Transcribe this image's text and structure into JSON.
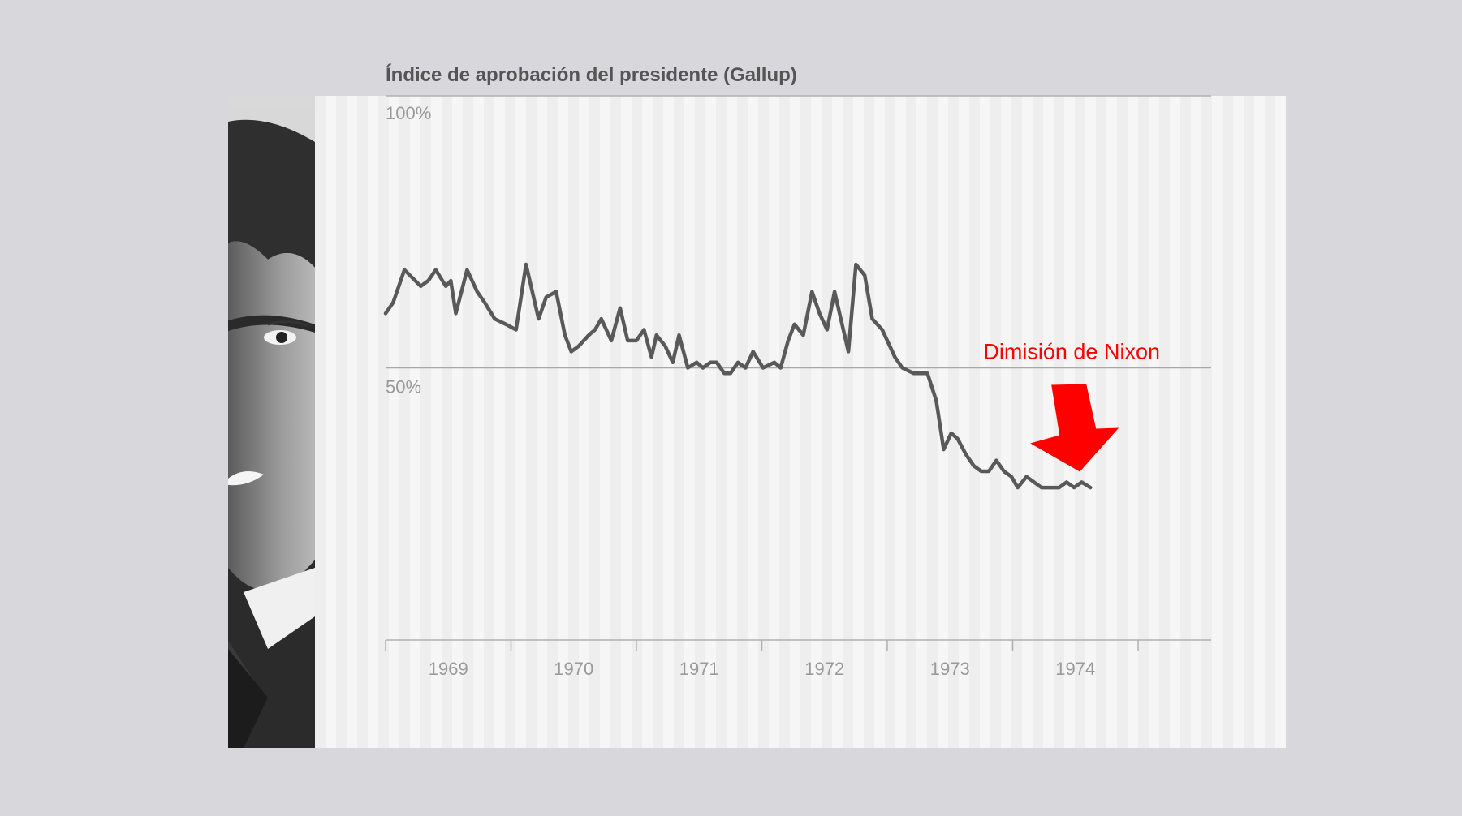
{
  "chart_data": {
    "type": "line",
    "title": "Índice de aprobación del presidente (Gallup)",
    "y_ticks": [
      "100%",
      "50%"
    ],
    "y_tick_values": [
      100,
      50
    ],
    "ylim": [
      0,
      100
    ],
    "x_ticks": [
      "1969",
      "1970",
      "1971",
      "1972",
      "1973",
      "1974"
    ],
    "xlim": [
      1969,
      1975.6
    ],
    "annotation": {
      "label": "Dimisión de Nixon",
      "x": 1974.6,
      "color": "#ff0000"
    },
    "line_color": "#595959",
    "series": [
      {
        "x": [
          1969.0,
          1969.06,
          1969.15,
          1969.28,
          1969.34,
          1969.4,
          1969.48,
          1969.52,
          1969.56,
          1969.65,
          1969.73,
          1969.79,
          1969.87,
          1969.96,
          1970.04,
          1970.12,
          1970.22,
          1970.28,
          1970.36,
          1970.43,
          1970.48,
          1970.54,
          1970.62,
          1970.67,
          1970.72,
          1970.8,
          1970.87,
          1970.93,
          1971.0,
          1971.06,
          1971.12,
          1971.16,
          1971.23,
          1971.29,
          1971.34,
          1971.41,
          1971.48,
          1971.53,
          1971.59,
          1971.64,
          1971.7,
          1971.75,
          1971.81,
          1971.87,
          1971.93,
          1972.01,
          1972.1,
          1972.15,
          1972.21,
          1972.26,
          1972.33,
          1972.4,
          1972.46,
          1972.52,
          1972.58,
          1972.63,
          1972.69,
          1972.75,
          1972.82,
          1972.88,
          1972.96,
          1973.06,
          1973.12,
          1973.21,
          1973.27,
          1973.32,
          1973.39,
          1973.45,
          1973.51,
          1973.56,
          1973.63,
          1973.69,
          1973.75,
          1973.81,
          1973.87,
          1973.93,
          1973.99,
          1974.04,
          1974.11,
          1974.17,
          1974.23,
          1974.3,
          1974.37,
          1974.43,
          1974.49,
          1974.55,
          1974.62
        ],
        "y": [
          60,
          62,
          68,
          65,
          66,
          68,
          65,
          66,
          60,
          68,
          64,
          62,
          59,
          58,
          57,
          69,
          59,
          63,
          64,
          56,
          53,
          54,
          56,
          57,
          59,
          55,
          61,
          55,
          55,
          57,
          52,
          56,
          54,
          51,
          56,
          50,
          51,
          50,
          51,
          51,
          49,
          49,
          51,
          50,
          53,
          50,
          51,
          50,
          55,
          58,
          56,
          64,
          60,
          57,
          64,
          59,
          53,
          69,
          67,
          59,
          57,
          52,
          50,
          49,
          49,
          49,
          44,
          35,
          38,
          37,
          34,
          32,
          31,
          31,
          33,
          31,
          30,
          28,
          30,
          29,
          28,
          28,
          28,
          29,
          28,
          29,
          28
        ]
      }
    ]
  }
}
